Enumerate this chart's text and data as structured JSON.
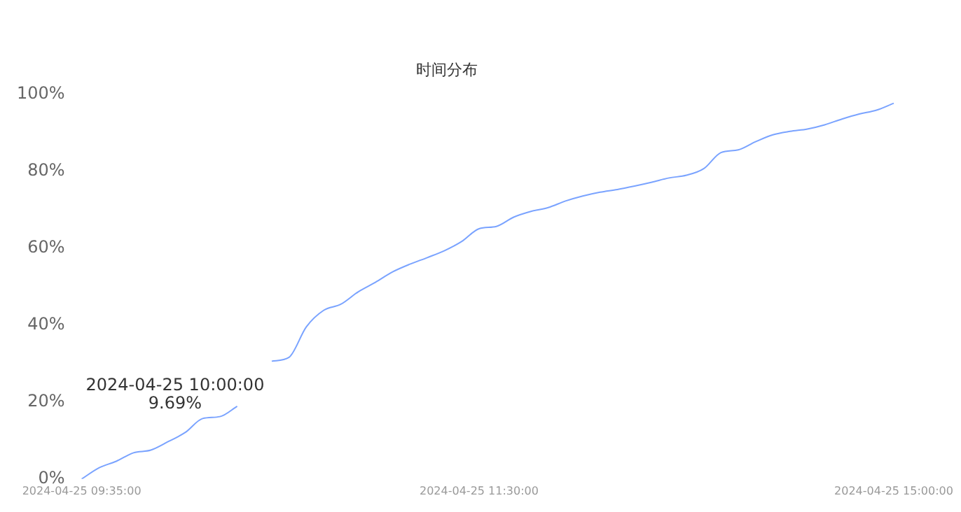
{
  "chart_data": {
    "type": "line",
    "title": "时间分布",
    "categories": [
      "2024-04-25 09:35:00",
      null,
      null,
      null,
      null,
      null,
      null,
      null,
      null,
      null,
      null,
      null,
      null,
      null,
      null,
      null,
      null,
      null,
      null,
      null,
      null,
      null,
      null,
      "2024-04-25 11:30:00",
      null,
      null,
      null,
      null,
      null,
      null,
      null,
      null,
      null,
      null,
      null,
      null,
      null,
      null,
      null,
      null,
      null,
      null,
      null,
      null,
      null,
      null,
      null,
      "2024-04-25 15:00:00"
    ],
    "series": [
      {
        "color": "#7aa3ff",
        "values": [
          0,
          2.9,
          4.6,
          6.8,
          7.5,
          9.69,
          12.1,
          15.7,
          16.2,
          18.9,
          null,
          30.6,
          31.6,
          39.5,
          43.8,
          45.4,
          48.6,
          51.1,
          53.8,
          55.8,
          57.5,
          59.3,
          61.7,
          65.0,
          65.6,
          68.0,
          69.5,
          70.5,
          72.2,
          73.5,
          74.5,
          75.2,
          76.1,
          77.1,
          78.2,
          78.9,
          80.6,
          84.8,
          85.5,
          87.6,
          89.4,
          90.3,
          90.9,
          92.0,
          93.5,
          94.8,
          95.8,
          97.6
        ]
      }
    ],
    "ylim": [
      0,
      100
    ],
    "yticks": [
      {
        "value": 0,
        "label": "0%"
      },
      {
        "value": 20,
        "label": "20%"
      },
      {
        "value": 40,
        "label": "40%"
      },
      {
        "value": 60,
        "label": "60%"
      },
      {
        "value": 80,
        "label": "80%"
      },
      {
        "value": 100,
        "label": "100%"
      }
    ],
    "annotations": [
      {
        "text": "2024-04-25 10:00:00\n9.69%",
        "y": 9.69
      }
    ],
    "grid": false,
    "legend": false,
    "marker": "none",
    "line_style": "solid"
  }
}
